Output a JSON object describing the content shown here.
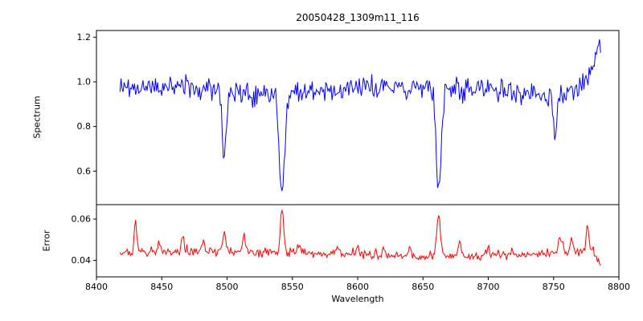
{
  "figure": {
    "title": "20050428_1309m11_116",
    "xlabel": "Wavelength",
    "background": "#ffffff"
  },
  "xticks": [
    {
      "v": 8400,
      "label": "8400"
    },
    {
      "v": 8450,
      "label": "8450"
    },
    {
      "v": 8500,
      "label": "8500"
    },
    {
      "v": 8550,
      "label": "8550"
    },
    {
      "v": 8600,
      "label": "8600"
    },
    {
      "v": 8650,
      "label": "8650"
    },
    {
      "v": 8700,
      "label": "8700"
    },
    {
      "v": 8750,
      "label": "8750"
    },
    {
      "v": 8800,
      "label": "8800"
    }
  ],
  "chart_data": [
    {
      "type": "line",
      "panel": "spectrum",
      "ylabel": "Spectrum",
      "color": "#0000ff",
      "xlim": [
        8400,
        8800
      ],
      "ylim": [
        0.45,
        1.23
      ],
      "yticks": [
        {
          "v": 0.6,
          "label": "0.6"
        },
        {
          "v": 0.8,
          "label": "0.8"
        },
        {
          "v": 1.0,
          "label": "1.0"
        },
        {
          "v": 1.2,
          "label": "1.2"
        }
      ],
      "x_start": 8418,
      "x_end": 8786,
      "step": 0.8,
      "model": {
        "continuum": 0.97,
        "noise_sigma": 0.025,
        "absorption_lines": [
          {
            "center": 8498,
            "depth": 0.31,
            "width": 2.2
          },
          {
            "center": 8542,
            "depth": 0.48,
            "width": 2.8
          },
          {
            "center": 8662,
            "depth": 0.48,
            "width": 2.8
          },
          {
            "center": 8751,
            "depth": 0.16,
            "width": 1.6
          },
          {
            "center": 8527,
            "depth": 0.025,
            "width": 14
          },
          {
            "center": 8747,
            "depth": 0.035,
            "width": 16
          }
        ],
        "edge_rise": {
          "start": 8766,
          "amplitude": 0.21
        }
      }
    },
    {
      "type": "line",
      "panel": "error",
      "ylabel": "Error",
      "color": "#ff0000",
      "xlim": [
        8400,
        8800
      ],
      "ylim": [
        0.032,
        0.067
      ],
      "yticks": [
        {
          "v": 0.04,
          "label": "0.04"
        },
        {
          "v": 0.06,
          "label": "0.06"
        }
      ],
      "x_start": 8418,
      "x_end": 8786,
      "step": 0.8,
      "model": {
        "baseline": 0.043,
        "sine_amp": 0.0012,
        "sine_period": 55,
        "noise_sigma": 0.001,
        "peaks": [
          {
            "center": 8430,
            "height": 0.016,
            "width": 1.3
          },
          {
            "center": 8448,
            "height": 0.004,
            "width": 1.5
          },
          {
            "center": 8466,
            "height": 0.009,
            "width": 1.3
          },
          {
            "center": 8482,
            "height": 0.005,
            "width": 1.5
          },
          {
            "center": 8498,
            "height": 0.01,
            "width": 1.5
          },
          {
            "center": 8513,
            "height": 0.008,
            "width": 1.5
          },
          {
            "center": 8542,
            "height": 0.022,
            "width": 1.8
          },
          {
            "center": 8555,
            "height": 0.005,
            "width": 1.5
          },
          {
            "center": 8585,
            "height": 0.004,
            "width": 1.5
          },
          {
            "center": 8600,
            "height": 0.005,
            "width": 1.5
          },
          {
            "center": 8620,
            "height": 0.004,
            "width": 1.5
          },
          {
            "center": 8640,
            "height": 0.004,
            "width": 1.5
          },
          {
            "center": 8662,
            "height": 0.02,
            "width": 2.0
          },
          {
            "center": 8678,
            "height": 0.007,
            "width": 1.5
          },
          {
            "center": 8700,
            "height": 0.004,
            "width": 1.5
          },
          {
            "center": 8755,
            "height": 0.008,
            "width": 2.0
          },
          {
            "center": 8764,
            "height": 0.008,
            "width": 1.5
          },
          {
            "center": 8776,
            "height": 0.013,
            "width": 1.5
          }
        ],
        "end_drop": {
          "start": 8779,
          "end_value": 0.0375
        }
      }
    }
  ]
}
